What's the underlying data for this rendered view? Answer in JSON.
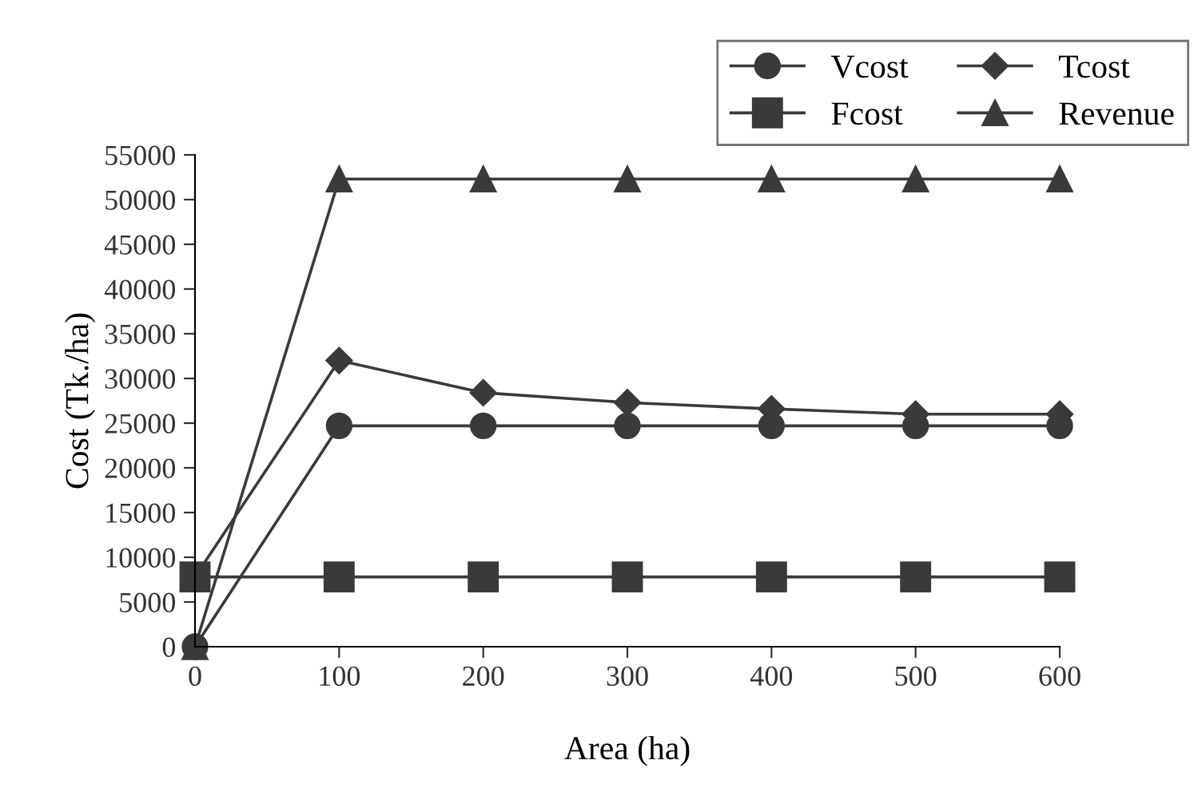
{
  "chart_data": {
    "type": "line",
    "xlabel": "Area (ha)",
    "ylabel": "Cost (Tk./ha)",
    "x": [
      0,
      100,
      200,
      300,
      400,
      500,
      600
    ],
    "series": [
      {
        "name": "Vcost",
        "color": "#3a3a3a",
        "marker": "circle",
        "values": [
          0,
          24700,
          24700,
          24700,
          24700,
          24700,
          24700
        ]
      },
      {
        "name": "Fcost",
        "color": "#3a3a3a",
        "marker": "square",
        "values": [
          7800,
          7800,
          7800,
          7800,
          7800,
          7800,
          7800
        ]
      },
      {
        "name": "Tcost",
        "color": "#3a3a3a",
        "marker": "diamond",
        "values": [
          7800,
          32000,
          28400,
          27300,
          26600,
          26000,
          26000
        ]
      },
      {
        "name": "Revenue",
        "color": "#3a3a3a",
        "marker": "triangle",
        "values": [
          0,
          52300,
          52300,
          52300,
          52300,
          52300,
          52300
        ]
      }
    ],
    "xlim": [
      0,
      600
    ],
    "xticks": [
      0,
      100,
      200,
      300,
      400,
      500,
      600
    ],
    "ylim": [
      0,
      55000
    ],
    "yticks": [
      0,
      5000,
      10000,
      15000,
      20000,
      25000,
      30000,
      35000,
      40000,
      45000,
      50000,
      55000
    ],
    "grid": false,
    "legend": "top right"
  }
}
